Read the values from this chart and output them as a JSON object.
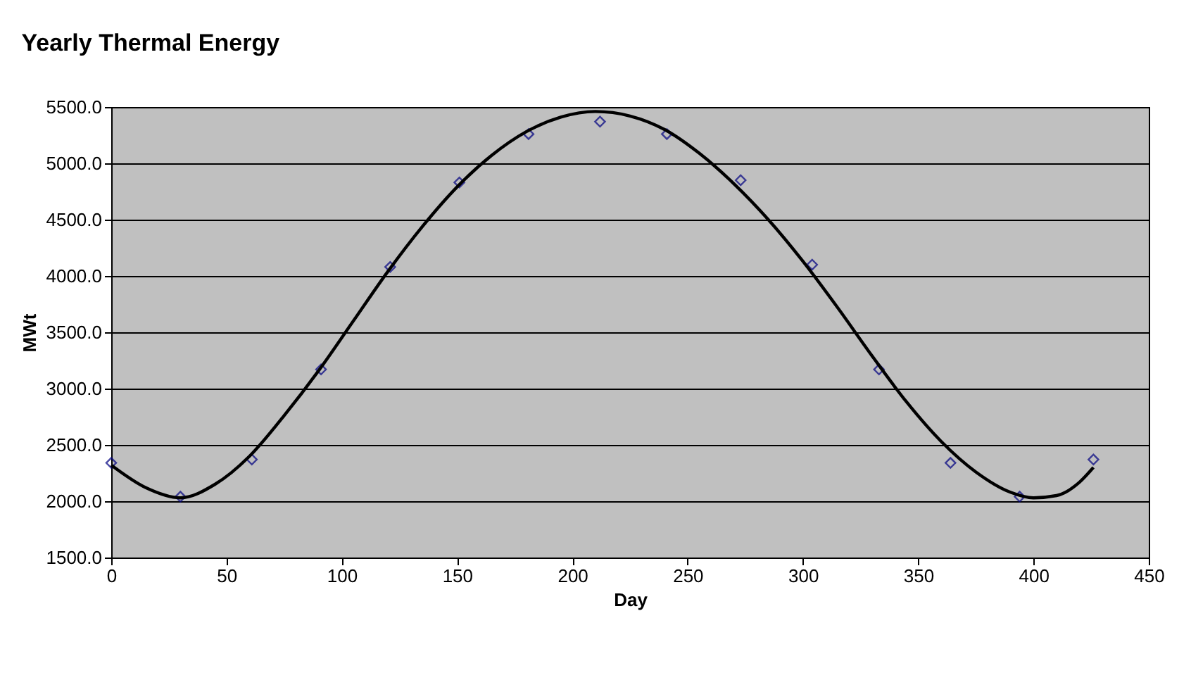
{
  "chart_data": {
    "type": "scatter",
    "title": "Yearly Thermal Energy",
    "xlabel": "Day",
    "ylabel": "MWt",
    "grid": "y",
    "xlim": [
      0,
      450
    ],
    "xticks": [
      0,
      50,
      100,
      150,
      200,
      250,
      300,
      350,
      400,
      450
    ],
    "ylim": [
      1500,
      5500
    ],
    "yticks": [
      {
        "value": 1500,
        "label": "1500.0"
      },
      {
        "value": 2000,
        "label": "2000.0"
      },
      {
        "value": 2500,
        "label": "2500.0"
      },
      {
        "value": 3000,
        "label": "3000.0"
      },
      {
        "value": 3500,
        "label": "3500.0"
      },
      {
        "value": 4000,
        "label": "4000.0"
      },
      {
        "value": 4500,
        "label": "4500.0"
      },
      {
        "value": 5000,
        "label": "5000.0"
      },
      {
        "value": 5500,
        "label": "5500.0"
      }
    ],
    "series": [
      {
        "marker": "diamond",
        "color": "#000080",
        "x": [
          0,
          30,
          61,
          91,
          121,
          151,
          181,
          212,
          241,
          273,
          304,
          333,
          364,
          394,
          426
        ],
        "values": [
          2340,
          2040,
          2370,
          3170,
          4080,
          4830,
          5260,
          5370,
          5260,
          4850,
          4100,
          3170,
          2340,
          2040,
          2370
        ]
      },
      {
        "type": "line",
        "marker": "none",
        "line_style": "solid",
        "color": "#000000",
        "x": [
          0,
          15,
          30,
          45,
          60,
          75,
          90,
          105,
          120,
          135,
          150,
          165,
          180,
          195,
          210,
          225,
          240,
          255,
          270,
          285,
          300,
          315,
          330,
          345,
          360,
          375,
          390,
          400,
          410,
          420,
          426
        ],
        "values": [
          2320,
          2120,
          2030,
          2150,
          2400,
          2760,
          3160,
          3600,
          4040,
          4440,
          4790,
          5070,
          5280,
          5410,
          5460,
          5420,
          5300,
          5090,
          4820,
          4500,
          4130,
          3720,
          3290,
          2880,
          2530,
          2260,
          2080,
          2030,
          2050,
          2170,
          2300
        ]
      }
    ]
  }
}
